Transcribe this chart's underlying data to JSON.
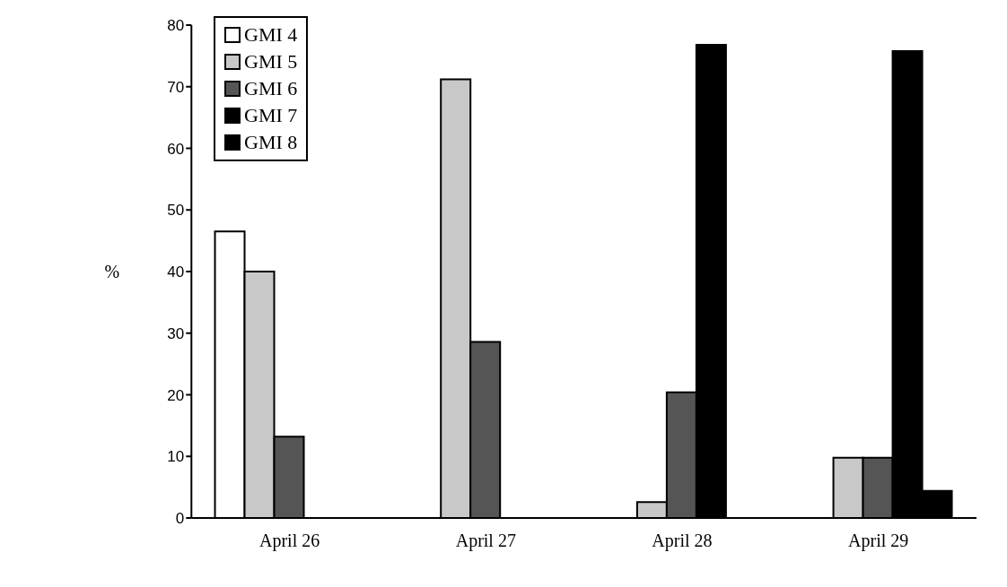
{
  "chart_data": {
    "type": "bar",
    "ylabel": "%",
    "categories": [
      "April 26",
      "April 27",
      "April 28",
      "April 29"
    ],
    "series": [
      {
        "name": "GMI 4",
        "color": "#ffffff",
        "values": [
          46.5,
          null,
          null,
          null
        ]
      },
      {
        "name": "GMI 5",
        "color": "#c8c8c8",
        "values": [
          40,
          71.2,
          2.6,
          9.8
        ]
      },
      {
        "name": "GMI 6",
        "color": "#555555",
        "values": [
          13.2,
          28.6,
          20.4,
          9.8
        ]
      },
      {
        "name": "GMI 7",
        "color": "#000000",
        "values": [
          null,
          null,
          76.8,
          75.8
        ]
      },
      {
        "name": "GMI 8",
        "color": "#000000",
        "values": [
          null,
          null,
          null,
          4.4
        ]
      }
    ],
    "ylim": [
      0,
      80
    ],
    "yticks": [
      0,
      10,
      20,
      30,
      40,
      50,
      60,
      70,
      80
    ],
    "grid": false,
    "legend": "top left"
  }
}
